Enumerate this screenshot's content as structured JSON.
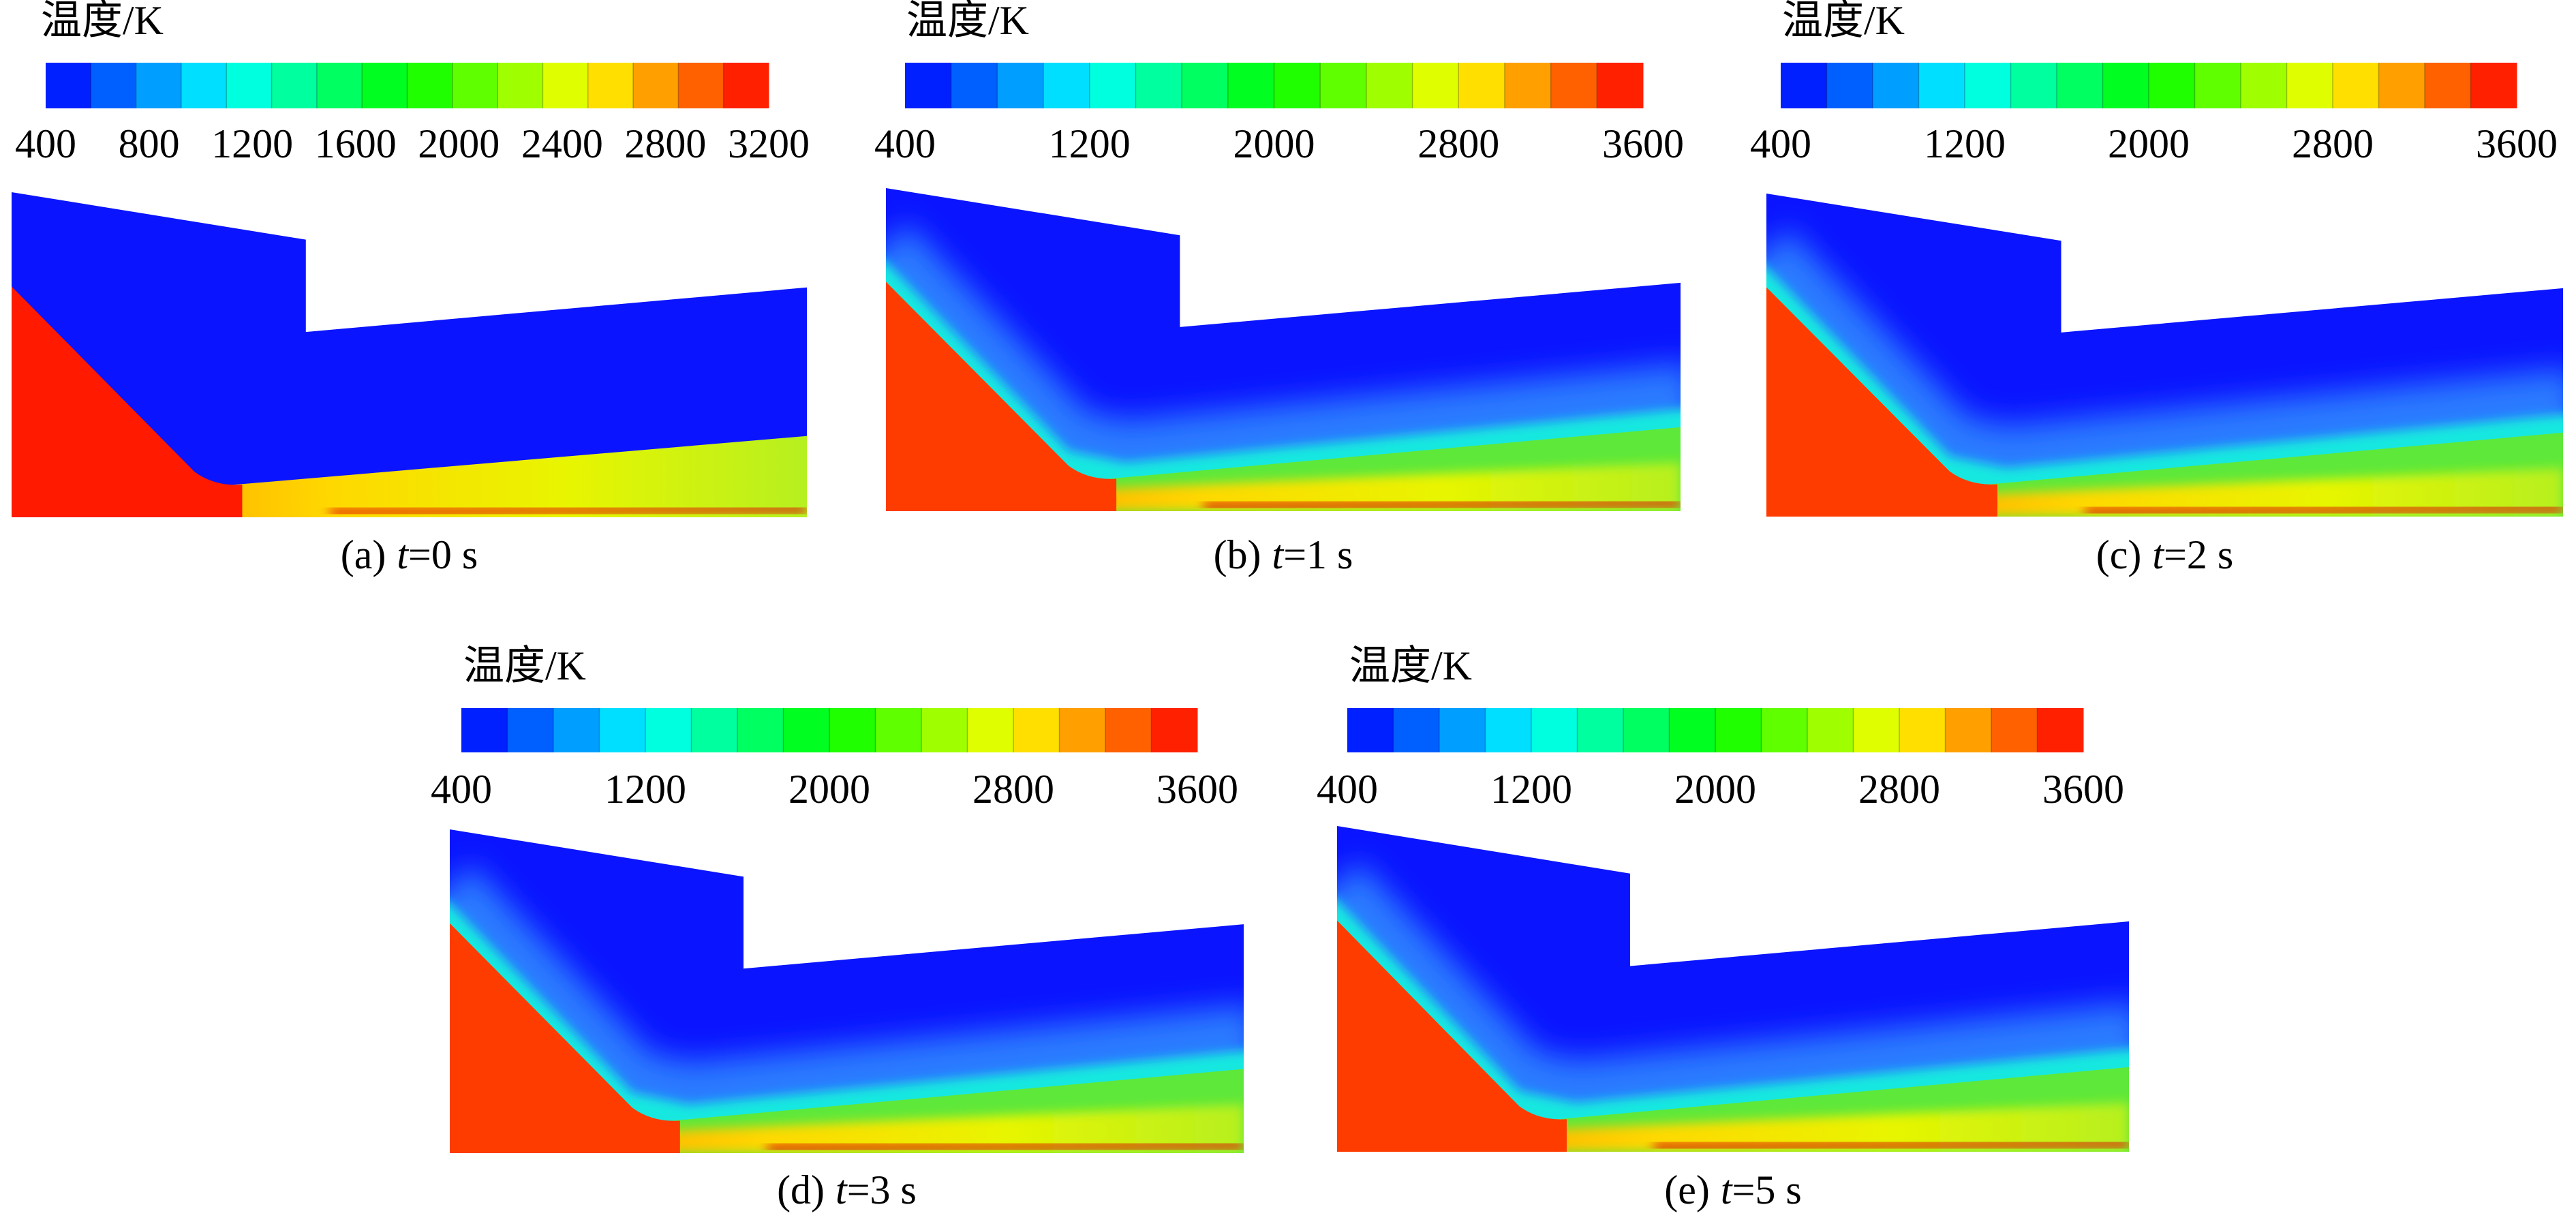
{
  "chart_data": [
    {
      "type": "contour",
      "title": "温度/K",
      "clim": [
        400,
        3200
      ],
      "cticks": [
        400,
        800,
        1200,
        1600,
        2000,
        2400,
        2800,
        3200
      ],
      "colormap": [
        "#0000ff",
        "#00ffff",
        "#00ff00",
        "#ffff00",
        "#ff0000"
      ],
      "caption": {
        "prefix": "(a)",
        "variable": "t",
        "value": "=0 s"
      }
    },
    {
      "type": "contour",
      "title": "温度/K",
      "clim": [
        400,
        3600
      ],
      "cticks": [
        400,
        1200,
        2000,
        2800,
        3600
      ],
      "colormap": [
        "#0000ff",
        "#00ffff",
        "#00ff00",
        "#ffff00",
        "#ff0000"
      ],
      "caption": {
        "prefix": "(b)",
        "variable": "t",
        "value": "=1 s"
      }
    },
    {
      "type": "contour",
      "title": "温度/K",
      "clim": [
        400,
        3600
      ],
      "cticks": [
        400,
        1200,
        2000,
        2800,
        3600
      ],
      "colormap": [
        "#0000ff",
        "#00ffff",
        "#00ff00",
        "#ffff00",
        "#ff0000"
      ],
      "caption": {
        "prefix": "(c)",
        "variable": "t",
        "value": "=2 s"
      }
    },
    {
      "type": "contour",
      "title": "温度/K",
      "clim": [
        400,
        3600
      ],
      "cticks": [
        400,
        1200,
        2000,
        2800,
        3600
      ],
      "colormap": [
        "#0000ff",
        "#00ffff",
        "#00ff00",
        "#ffff00",
        "#ff0000"
      ],
      "caption": {
        "prefix": "(d)",
        "variable": "t",
        "value": "=3 s"
      }
    },
    {
      "type": "contour",
      "title": "温度/K",
      "clim": [
        400,
        3600
      ],
      "cticks": [
        400,
        1200,
        2000,
        2800,
        3600
      ],
      "colormap": [
        "#0000ff",
        "#00ffff",
        "#00ff00",
        "#ffff00",
        "#ff0000"
      ],
      "caption": {
        "prefix": "(e)",
        "variable": "t",
        "value": "=5 s"
      }
    }
  ]
}
